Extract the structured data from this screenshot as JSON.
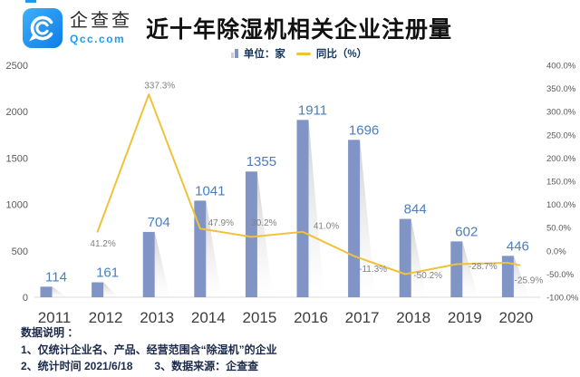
{
  "header": {
    "logo_text": "企查查",
    "logo_sub": "Qcc.com",
    "title": "近十年除湿机相关企业注册量"
  },
  "legend": {
    "bar_label": "单位：家",
    "line_label": "同比（%）"
  },
  "colors": {
    "brand_blue": "#1e9bf0",
    "bar": "#8095c5",
    "bar_value_label": "#4a7ebd",
    "line": "#f0c23c",
    "axis_text": "#595959",
    "point_label": "#808080"
  },
  "chart_data": {
    "type": "combo",
    "subtypes": [
      "bar",
      "line"
    ],
    "title": "近十年除湿机相关企业注册量",
    "categories": [
      "2011",
      "2012",
      "2013",
      "2014",
      "2015",
      "2016",
      "2017",
      "2018",
      "2019",
      "2020"
    ],
    "bar_series": {
      "name": "单位：家",
      "values": [
        114,
        161,
        704,
        1041,
        1355,
        1911,
        1696,
        844,
        602,
        446
      ],
      "color": "#8095c5",
      "label_color": "#4a7ebd"
    },
    "line_series": {
      "name": "同比（%）",
      "values": [
        null,
        41.2,
        337.3,
        47.9,
        30.2,
        41.0,
        -11.3,
        -50.2,
        -28.7,
        -25.9
      ],
      "labels": [
        null,
        "41.2%",
        "337.3%",
        "47.9%",
        "30.2%",
        "41.0%",
        "-11.3%",
        "-50.2%",
        "-28.7%",
        "-25.9%"
      ],
      "color": "#f0c23c",
      "label_color": "#808080",
      "label_offsets": [
        null,
        [
          6,
          13
        ],
        [
          12,
          -10
        ],
        [
          23,
          -7
        ],
        [
          14,
          -16
        ],
        [
          26,
          -7
        ],
        [
          21,
          14
        ],
        [
          25,
          1
        ],
        [
          29,
          2
        ],
        [
          23,
          19
        ]
      ]
    },
    "left_axis": {
      "min": 0,
      "max": 2500,
      "ticks": [
        0,
        500,
        1000,
        1500,
        2000,
        2500
      ]
    },
    "right_axis": {
      "min": -100,
      "max": 400,
      "tick_labels": [
        "-100.0%",
        "-50.0%",
        "0.0%",
        "50.0%",
        "100.0%",
        "150.0%",
        "200.0%",
        "250.0%",
        "300.0%",
        "350.0%",
        "400.0%"
      ]
    },
    "grid": false,
    "legend_position": "top-center"
  },
  "footer": {
    "heading": "数据说明 ：",
    "line1": "1、仅统计企业名、产品、经营范围含“除湿机”的企业",
    "line2": "2、统计时间 2021/6/18　　3、数据来源：企查查"
  }
}
